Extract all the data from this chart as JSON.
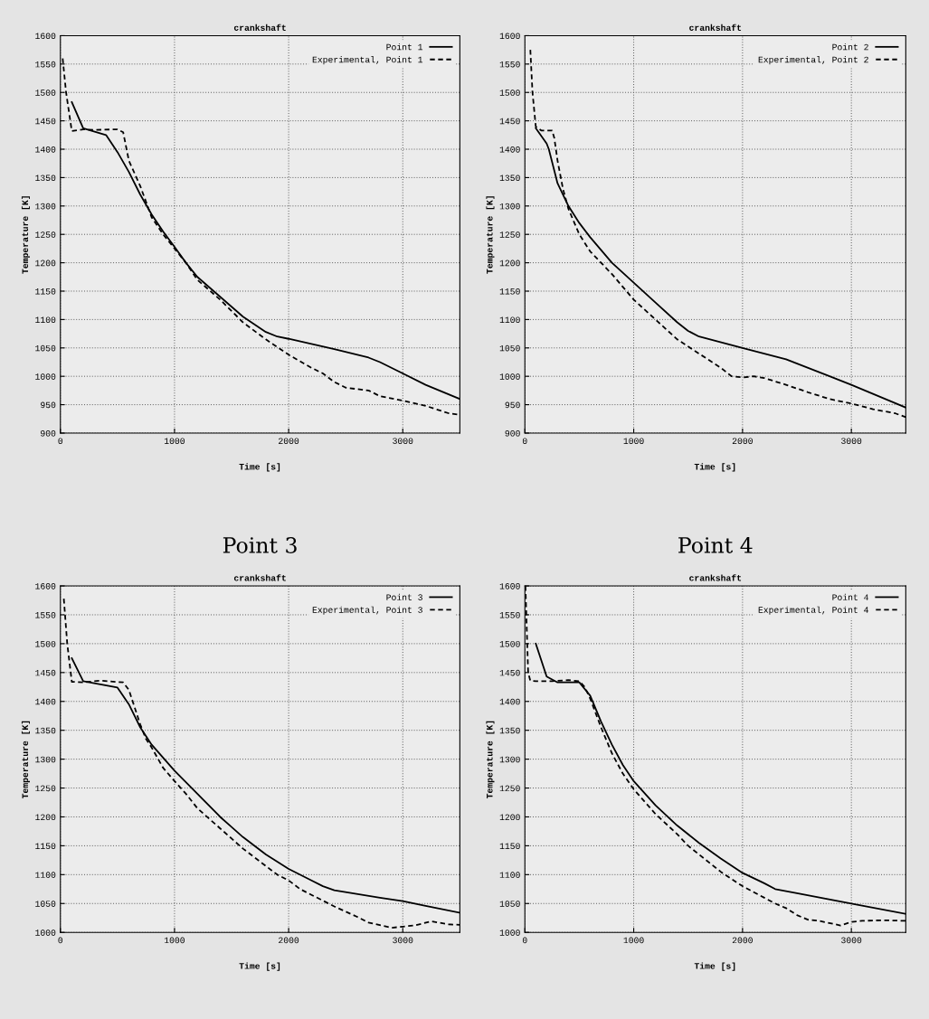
{
  "chart_data": [
    {
      "type": "line",
      "title": "crankshaft",
      "xlabel": "Time [s]",
      "ylabel": "Temperature [K]",
      "xlim": [
        0,
        3500
      ],
      "xticks": [
        0,
        1000,
        2000,
        3000
      ],
      "ylim": [
        900,
        1600
      ],
      "yticks": [
        900,
        950,
        1000,
        1050,
        1100,
        1150,
        1200,
        1250,
        1300,
        1350,
        1400,
        1450,
        1500,
        1550,
        1600
      ],
      "grid": true,
      "legend": "top right",
      "marker": "none",
      "series": [
        {
          "name": "Point 1",
          "color": "#000000",
          "line_style": "solid",
          "x": [
            100,
            200,
            400,
            500,
            600,
            700,
            800,
            900,
            1000,
            1100,
            1200,
            1400,
            1600,
            1800,
            1900,
            2000,
            2400,
            2700,
            2800,
            3000,
            3200,
            3500
          ],
          "values": [
            1483,
            1437,
            1425,
            1395,
            1360,
            1320,
            1285,
            1255,
            1228,
            1200,
            1175,
            1140,
            1105,
            1078,
            1070,
            1066,
            1048,
            1033,
            1025,
            1005,
            985,
            960
          ]
        },
        {
          "name": "Experimental, Point 1",
          "color": "#000000",
          "line_style": "dashed",
          "x": [
            20,
            50,
            100,
            200,
            300,
            500,
            550,
            600,
            700,
            800,
            900,
            1000,
            1100,
            1200,
            1400,
            1600,
            1800,
            2000,
            2200,
            2300,
            2400,
            2500,
            2700,
            2800,
            3000,
            3200,
            3400,
            3500
          ],
          "values": [
            1560,
            1500,
            1432,
            1435,
            1434,
            1435,
            1430,
            1380,
            1335,
            1280,
            1250,
            1225,
            1200,
            1170,
            1135,
            1095,
            1065,
            1038,
            1015,
            1005,
            990,
            980,
            975,
            965,
            957,
            948,
            935,
            932
          ]
        }
      ]
    },
    {
      "type": "line",
      "title": "crankshaft",
      "xlabel": "Time [s]",
      "ylabel": "Temperature [K]",
      "xlim": [
        0,
        3500
      ],
      "xticks": [
        0,
        1000,
        2000,
        3000
      ],
      "ylim": [
        900,
        1600
      ],
      "yticks": [
        900,
        950,
        1000,
        1050,
        1100,
        1150,
        1200,
        1250,
        1300,
        1350,
        1400,
        1450,
        1500,
        1550,
        1600
      ],
      "grid": true,
      "legend": "top right",
      "marker": "none",
      "series": [
        {
          "name": "Point 2",
          "color": "#000000",
          "line_style": "solid",
          "x": [
            100,
            200,
            220,
            300,
            400,
            500,
            600,
            800,
            1000,
            1200,
            1400,
            1500,
            1600,
            2000,
            2400,
            2800,
            3000,
            3500
          ],
          "values": [
            1437,
            1410,
            1400,
            1340,
            1300,
            1270,
            1245,
            1200,
            1165,
            1130,
            1095,
            1080,
            1070,
            1050,
            1030,
            1000,
            985,
            945
          ]
        },
        {
          "name": "Experimental, Point 2",
          "color": "#000000",
          "line_style": "dashed",
          "x": [
            50,
            70,
            100,
            150,
            250,
            270,
            300,
            350,
            400,
            500,
            600,
            800,
            1000,
            1200,
            1400,
            1600,
            1800,
            1900,
            2000,
            2100,
            2200,
            2400,
            2600,
            2800,
            3000,
            3200,
            3400,
            3500
          ],
          "values": [
            1575,
            1500,
            1440,
            1433,
            1433,
            1420,
            1380,
            1330,
            1295,
            1250,
            1220,
            1180,
            1135,
            1100,
            1065,
            1040,
            1015,
            1000,
            998,
            1000,
            997,
            985,
            972,
            960,
            952,
            942,
            935,
            928
          ]
        }
      ]
    },
    {
      "type": "line",
      "title": "Point 3",
      "subtitle": "crankshaft",
      "xlabel": "Time [s]",
      "ylabel": "Temperature [K]",
      "xlim": [
        0,
        3500
      ],
      "xticks": [
        0,
        1000,
        2000,
        3000
      ],
      "ylim": [
        1000,
        1600
      ],
      "yticks": [
        1000,
        1050,
        1100,
        1150,
        1200,
        1250,
        1300,
        1350,
        1400,
        1450,
        1500,
        1550,
        1600
      ],
      "grid": true,
      "legend": "top right",
      "marker": "none",
      "series": [
        {
          "name": "Point 3",
          "color": "#000000",
          "line_style": "solid",
          "x": [
            100,
            200,
            500,
            600,
            700,
            800,
            1000,
            1200,
            1400,
            1600,
            1800,
            2000,
            2200,
            2300,
            2400,
            2800,
            3000,
            3200,
            3500
          ],
          "values": [
            1475,
            1435,
            1424,
            1395,
            1355,
            1325,
            1280,
            1240,
            1200,
            1165,
            1135,
            1110,
            1090,
            1080,
            1073,
            1060,
            1054,
            1046,
            1034
          ]
        },
        {
          "name": "Experimental, Point 3",
          "color": "#000000",
          "line_style": "dashed",
          "x": [
            30,
            60,
            100,
            200,
            350,
            550,
            600,
            700,
            750,
            800,
            900,
            1000,
            1100,
            1200,
            1400,
            1600,
            1800,
            1900,
            2000,
            2100,
            2200,
            2400,
            2600,
            2700,
            2900,
            3000,
            3100,
            3250,
            3400,
            3500
          ],
          "values": [
            1578,
            1500,
            1434,
            1433,
            1436,
            1433,
            1420,
            1360,
            1335,
            1320,
            1285,
            1262,
            1240,
            1215,
            1180,
            1145,
            1115,
            1100,
            1090,
            1075,
            1065,
            1045,
            1027,
            1017,
            1008,
            1010,
            1012,
            1019,
            1014,
            1013
          ]
        }
      ]
    },
    {
      "type": "line",
      "title": "Point 4",
      "subtitle": "crankshaft",
      "xlabel": "Time [s]",
      "ylabel": "Temperature [K]",
      "xlim": [
        0,
        3500
      ],
      "xticks": [
        0,
        1000,
        2000,
        3000
      ],
      "ylim": [
        1000,
        1600
      ],
      "yticks": [
        1000,
        1050,
        1100,
        1150,
        1200,
        1250,
        1300,
        1350,
        1400,
        1450,
        1500,
        1550,
        1600
      ],
      "grid": true,
      "legend": "top right",
      "marker": "none",
      "series": [
        {
          "name": "Point 4",
          "color": "#000000",
          "line_style": "solid",
          "x": [
            100,
            200,
            300,
            500,
            600,
            700,
            800,
            900,
            1000,
            1200,
            1400,
            1600,
            1800,
            2000,
            2200,
            2300,
            2500,
            3000,
            3500
          ],
          "values": [
            1500,
            1443,
            1433,
            1433,
            1410,
            1365,
            1325,
            1290,
            1262,
            1220,
            1185,
            1155,
            1128,
            1103,
            1085,
            1075,
            1068,
            1050,
            1032
          ]
        },
        {
          "name": "Experimental, Point 4",
          "color": "#000000",
          "line_style": "dashed",
          "x": [
            5,
            30,
            50,
            100,
            250,
            400,
            500,
            550,
            600,
            700,
            800,
            900,
            1000,
            1200,
            1400,
            1500,
            1600,
            1800,
            2000,
            2200,
            2300,
            2400,
            2500,
            2600,
            2700,
            2900,
            3000,
            3100,
            3300,
            3500
          ],
          "values": [
            1600,
            1450,
            1436,
            1435,
            1435,
            1437,
            1435,
            1425,
            1405,
            1355,
            1310,
            1275,
            1248,
            1205,
            1170,
            1150,
            1135,
            1105,
            1080,
            1060,
            1050,
            1042,
            1030,
            1022,
            1020,
            1012,
            1018,
            1020,
            1021,
            1020
          ]
        }
      ]
    }
  ]
}
